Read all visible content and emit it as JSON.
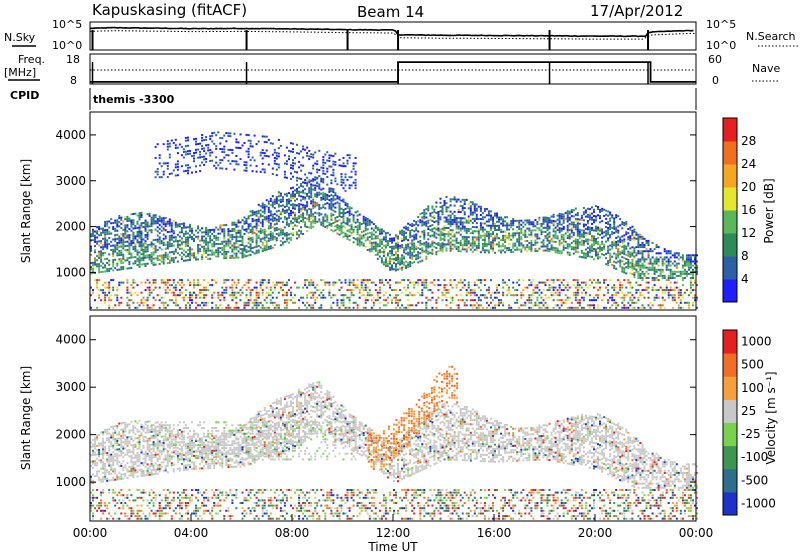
{
  "header": {
    "station": "Kapuskasing (fitACF)",
    "beam": "Beam 14",
    "date": "17/Apr/2012"
  },
  "chart_data": [
    {
      "type": "line",
      "panel": "nsky-nsearch",
      "left_label": "N.Sky",
      "right_label": "N.Search",
      "left_ticks": [
        "10^5",
        "10^0"
      ],
      "right_ticks": [
        "10^5",
        "10^0"
      ],
      "x": [
        0,
        1,
        2,
        4,
        6,
        8,
        10,
        12,
        12.2,
        14,
        16,
        18,
        20,
        22,
        22.2,
        24
      ],
      "nsky": [
        30000,
        40000,
        35000,
        25000,
        28000,
        22000,
        15000,
        12000,
        1000,
        800,
        700,
        600,
        500,
        500,
        4000,
        10000
      ],
      "colors": {
        "line": "#000000"
      }
    },
    {
      "type": "line",
      "panel": "freq-nave",
      "left_label": "Freq.",
      "left_unit": "[MHz]",
      "right_label": "Nave",
      "left_ticks": [
        "18",
        "8"
      ],
      "right_ticks": [
        "60",
        "0"
      ],
      "freq_steps": [
        [
          0,
          8.5
        ],
        [
          12.2,
          17.5
        ],
        [
          22.2,
          8.5
        ],
        [
          24,
          8.5
        ]
      ],
      "nave_level": 30
    },
    {
      "type": "text",
      "panel": "cpid",
      "label": "CPID",
      "value": "themis -3300"
    },
    {
      "type": "heatmap",
      "panel": "power",
      "ylabel": "Slant Range [km]",
      "yticks": [
        1000,
        2000,
        3000,
        4000
      ],
      "ylim": [
        180,
        4500
      ],
      "xlim": [
        0,
        24
      ],
      "colorbar": {
        "label": "Power [dB]",
        "ticks": [
          "4",
          "8",
          "12",
          "16",
          "20",
          "24",
          "28"
        ],
        "colors": [
          "#1e1eff",
          "#2d5fa6",
          "#2d8a5a",
          "#5ab85a",
          "#e6e632",
          "#f5a623",
          "#f07020",
          "#e62020"
        ]
      },
      "features": [
        {
          "name": "main band",
          "x": [
            0,
            2,
            4,
            6,
            8,
            9,
            11,
            12,
            14,
            16,
            18,
            20,
            22,
            24
          ],
          "range": [
            1500,
            1650,
            1800,
            1850,
            2200,
            2600,
            2000,
            1500,
            2000,
            1950,
            2000,
            1800,
            1300,
            1200
          ]
        },
        {
          "name": "high band",
          "x": [
            3,
            5,
            7,
            9,
            10
          ],
          "range": [
            3300,
            3500,
            3400,
            3100,
            3000
          ]
        },
        {
          "name": "near band",
          "x": [
            0,
            24
          ],
          "range": [
            400,
            400
          ]
        }
      ]
    },
    {
      "type": "heatmap",
      "panel": "velocity",
      "ylabel": "Slant Range [km]",
      "yticks": [
        1000,
        2000,
        3000,
        4000
      ],
      "ylim": [
        180,
        4500
      ],
      "xlim": [
        0,
        24
      ],
      "xlabel": "Time UT",
      "xticks": [
        "00:00",
        "04:00",
        "08:00",
        "12:00",
        "16:00",
        "20:00",
        "00:00"
      ],
      "colorbar": {
        "label": "Velocity [m s⁻¹]",
        "ticks": [
          "1000",
          "500",
          "100",
          "25",
          "-25",
          "-100",
          "-500",
          "-1000"
        ],
        "colors": [
          "#1e32c8",
          "#2d6e8c",
          "#3c9650",
          "#78d250",
          "#c8c8c8",
          "#f5a03c",
          "#f06e28",
          "#e62020"
        ]
      },
      "features": [
        {
          "name": "main band (ground scatter)",
          "x": [
            0,
            2,
            4,
            6,
            8,
            9,
            11,
            12,
            14,
            16,
            18,
            20,
            22,
            24
          ],
          "range": [
            1500,
            1650,
            1800,
            1850,
            2200,
            2600,
            2000,
            1500,
            2000,
            1950,
            2000,
            1800,
            1300,
            1200
          ]
        },
        {
          "name": "away echoes",
          "x": [
            11.5,
            13,
            14
          ],
          "range": [
            1700,
            2400,
            3100
          ]
        }
      ]
    }
  ]
}
